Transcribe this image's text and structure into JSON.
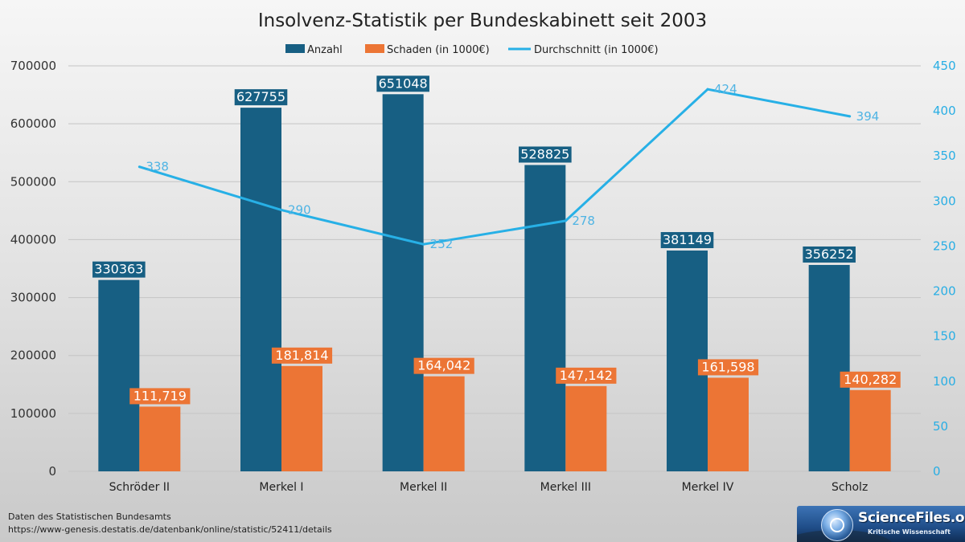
{
  "chart_data": {
    "type": "bar",
    "title": "Insolvenz-Statistik per Bundeskabinett seit 2003",
    "categories": [
      "Schröder II",
      "Merkel I",
      "Merkel II",
      "Merkel III",
      "Merkel IV",
      "Scholz"
    ],
    "series": [
      {
        "name": "Anzahl",
        "type": "bar",
        "axis": "left",
        "color": "#175f83",
        "values": [
          330363,
          627755,
          651048,
          528825,
          381149,
          356252
        ],
        "labels": [
          "330363",
          "627755",
          "651048",
          "528825",
          "381149",
          "356252"
        ]
      },
      {
        "name": "Schaden (in 1000€)",
        "type": "bar",
        "axis": "left",
        "color": "#ec7535",
        "values": [
          111719,
          181814,
          164042,
          147142,
          161598,
          140282
        ],
        "labels": [
          "111,719",
          "181,814",
          "164,042",
          "147,142",
          "161,598",
          "140,282"
        ]
      },
      {
        "name": "Durchschnitt (in 1000€)",
        "type": "line",
        "axis": "right",
        "color": "#27b0e6",
        "values": [
          338,
          290,
          252,
          278,
          424,
          394
        ],
        "labels": [
          "338",
          "290",
          "252",
          "278",
          "424",
          "394"
        ]
      }
    ],
    "y_left": {
      "min": 0,
      "max": 700000,
      "ticks": [
        "0",
        "100000",
        "200000",
        "300000",
        "400000",
        "500000",
        "600000",
        "700000"
      ]
    },
    "y_right": {
      "min": 0,
      "max": 450,
      "ticks": [
        "0",
        "50",
        "100",
        "150",
        "200",
        "250",
        "300",
        "350",
        "400",
        "450"
      ]
    },
    "grid": true,
    "legend_position": "top-center"
  },
  "source": {
    "line1": "Daten des Statistischen Bundesamts",
    "line2": "https://www-genesis.destatis.de/datenbank/online/statistic/52411/details"
  },
  "logo": {
    "brand": "ScienceFiles.org",
    "tagline": "Kritische Wissenschaft"
  }
}
